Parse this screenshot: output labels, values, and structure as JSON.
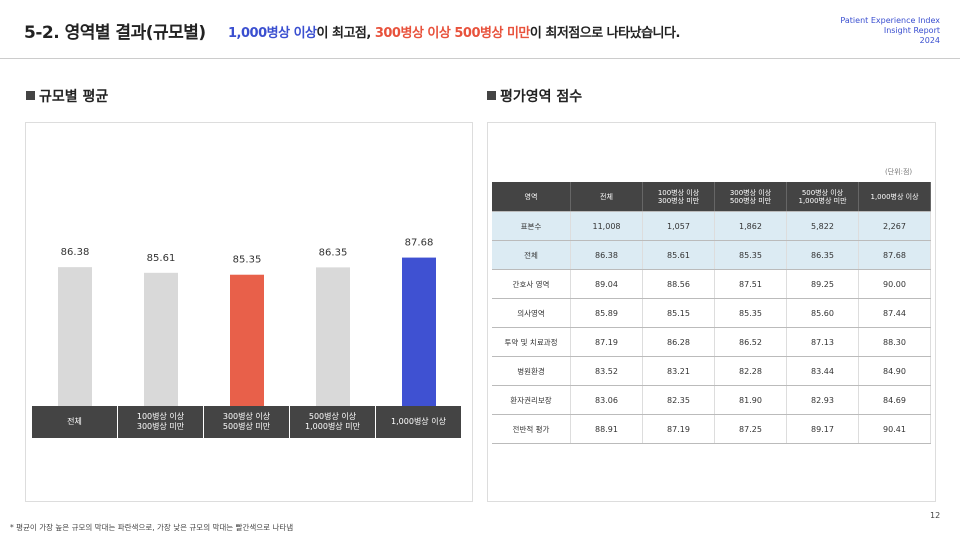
{
  "header": {
    "title": "5-2. 영역별 결과(규모별)",
    "headline": [
      "1,000병상 이상",
      "이 최고점, ",
      "300병상 이상 500병상 미만",
      "이 최저점으로 나타났습니다."
    ],
    "brand": [
      "Patient Experience Index",
      "Insight Report",
      "2024"
    ]
  },
  "sections": [
    "규모별 평균",
    "평가영역 점수"
  ],
  "chart_data": {
    "type": "bar",
    "categories": [
      "전체",
      "100병상 이상\n300병상 미만",
      "300병상 이상\n500병상 미만",
      "500병상 이상\n1,000병상 미만",
      "1,000병상 이상"
    ],
    "values": [
      86.38,
      85.61,
      85.35,
      86.35,
      87.68
    ],
    "colors": [
      "#d9d9d9",
      "#d9d9d9",
      "#e8604a",
      "#d9d9d9",
      "#3f51d2"
    ],
    "ylim": [
      67.5,
      105.3
    ]
  },
  "table": {
    "unit": "(단위:점)",
    "header": [
      "영역",
      "전체",
      "100병상 이상\n300병상 미만",
      "300병상 이상\n500병상 미만",
      "500병상 이상\n1,000병상 미만",
      "1,000병상 이상"
    ],
    "rows": [
      [
        "표본수",
        "11,008",
        "1,057",
        "1,862",
        "5,822",
        "2,267"
      ],
      [
        "전체",
        "86.38",
        "85.61",
        "85.35",
        "86.35",
        "87.68"
      ],
      [
        "간호사 영역",
        "89.04",
        "88.56",
        "87.51",
        "89.25",
        "90.00"
      ],
      [
        "의사영역",
        "85.89",
        "85.15",
        "85.35",
        "85.60",
        "87.44"
      ],
      [
        "투약 및 치료과정",
        "87.19",
        "86.28",
        "86.52",
        "87.13",
        "88.30"
      ],
      [
        "병원환경",
        "83.52",
        "83.21",
        "82.28",
        "83.44",
        "84.90"
      ],
      [
        "환자권리보장",
        "83.06",
        "82.35",
        "81.90",
        "82.93",
        "84.69"
      ],
      [
        "전반적 평가",
        "88.91",
        "87.19",
        "87.25",
        "89.17",
        "90.41"
      ]
    ]
  },
  "footnote": "* 평균이 가장 높은 규모의 막대는 파란색으로, 가장 낮은 규모의 막대는 빨간색으로 나타냄",
  "page_number": "12"
}
